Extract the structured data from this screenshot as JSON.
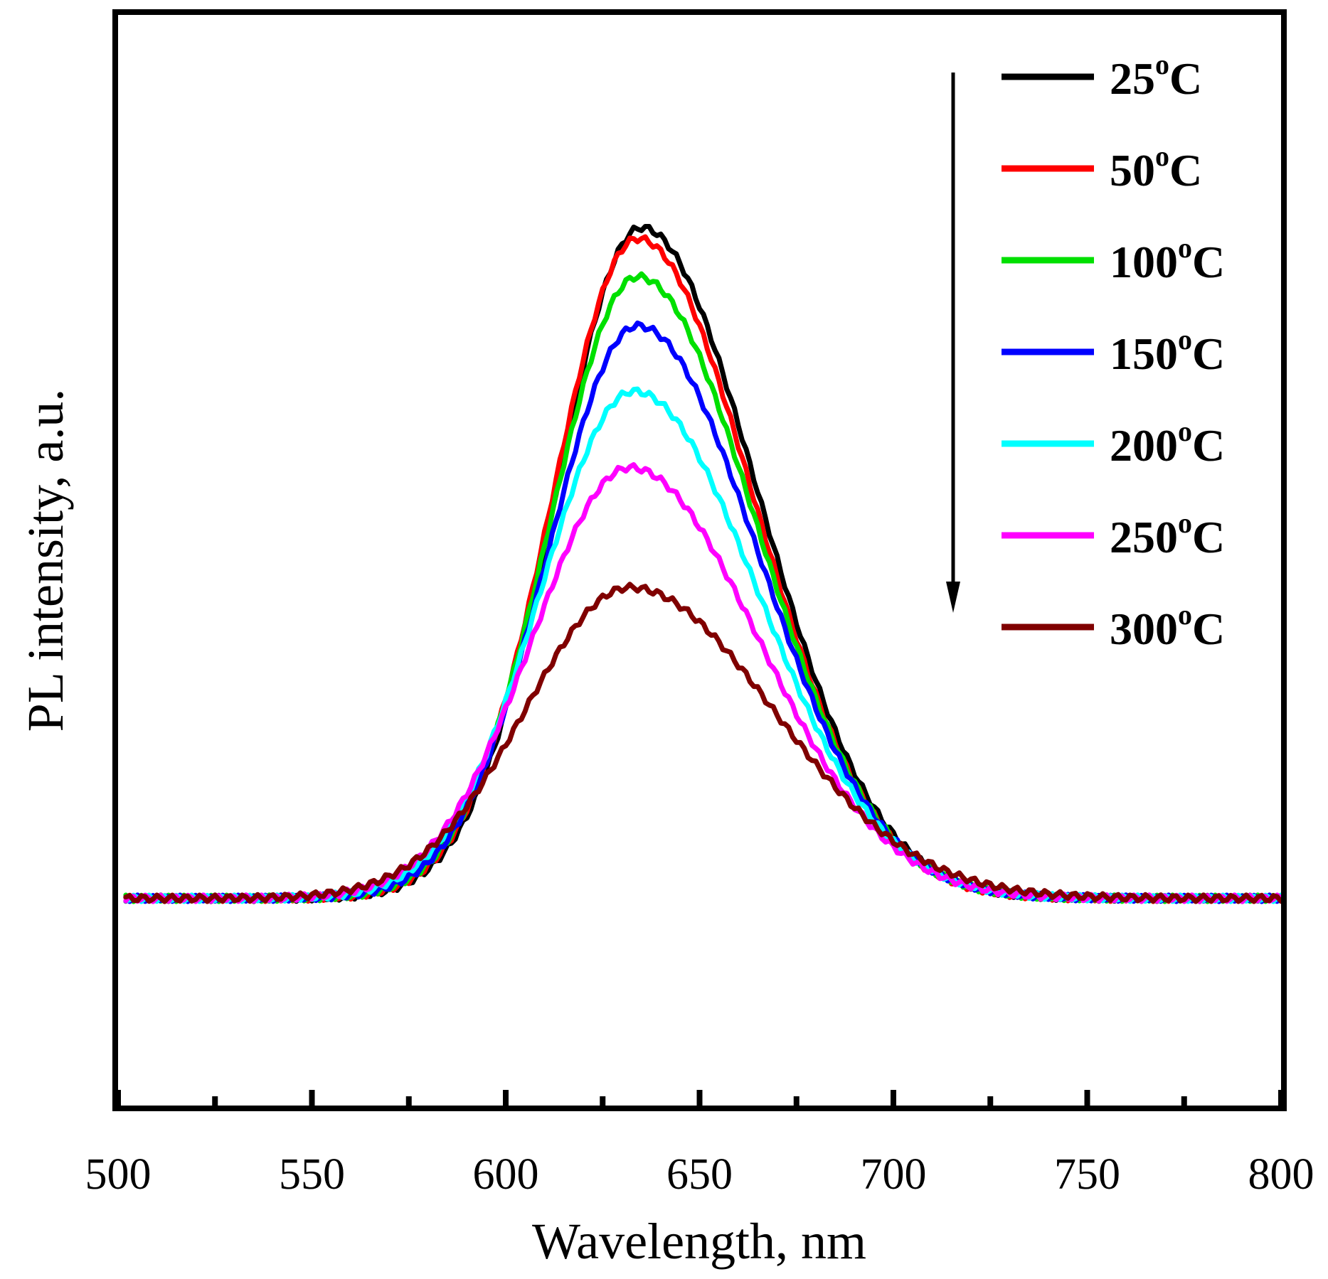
{
  "chart_data": {
    "type": "line",
    "title": "",
    "xlabel": "Wavelength, nm",
    "ylabel": "PL intensity, a.u.",
    "xlim": [
      500,
      800
    ],
    "ylim": [
      0,
      1.0
    ],
    "x_ticks": [
      500,
      550,
      600,
      650,
      700,
      750,
      800
    ],
    "x_minor_ticks": [
      525,
      575,
      625,
      675,
      725,
      775
    ],
    "y_tick_labels_shown": false,
    "grid": false,
    "legend": {
      "placement": "top-right",
      "arrow": "down",
      "temperature_unit": "C",
      "degree_symbol": "o"
    },
    "series": [
      {
        "name": "25",
        "color": "#000000",
        "peak_x": 635,
        "peak": 0.805,
        "baseline": 0.19,
        "sL": 22,
        "sR": 30
      },
      {
        "name": "50",
        "color": "#ff0000",
        "peak_x": 634,
        "peak": 0.795,
        "baseline": 0.19,
        "sL": 22,
        "sR": 30
      },
      {
        "name": "100",
        "color": "#00e000",
        "peak_x": 634,
        "peak": 0.76,
        "baseline": 0.19,
        "sL": 22.5,
        "sR": 30.5
      },
      {
        "name": "150",
        "color": "#0000ff",
        "peak_x": 634,
        "peak": 0.715,
        "baseline": 0.19,
        "sL": 23,
        "sR": 31
      },
      {
        "name": "200",
        "color": "#00ffff",
        "peak_x": 633,
        "peak": 0.655,
        "baseline": 0.19,
        "sL": 24,
        "sR": 32
      },
      {
        "name": "250",
        "color": "#ff00ff",
        "peak_x": 632,
        "peak": 0.585,
        "baseline": 0.19,
        "sL": 25,
        "sR": 33
      },
      {
        "name": "300",
        "color": "#800000",
        "peak_x": 632,
        "peak": 0.475,
        "baseline": 0.19,
        "sL": 27,
        "sR": 37
      }
    ]
  }
}
